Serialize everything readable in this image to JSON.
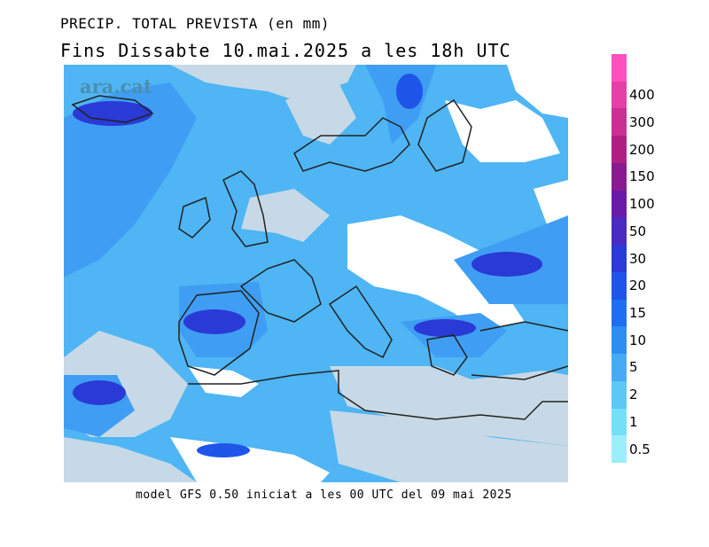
{
  "title_line1": "PRECIP. TOTAL PREVISTA (en mm)",
  "title_line2": "Fins Dissabte  10.mai.2025 a les 18h UTC",
  "footer": "model GFS 0.50 iniciat a les 00 UTC del 09 mai 2025",
  "logo_text": "ara.cat",
  "legend": {
    "unit": "mm",
    "levels": [
      {
        "label": "",
        "color": "#ff4fbf"
      },
      {
        "label": "400",
        "color": "#e63fa8"
      },
      {
        "label": "300",
        "color": "#cc2f94"
      },
      {
        "label": "200",
        "color": "#b01f84"
      },
      {
        "label": "150",
        "color": "#8a1a8f"
      },
      {
        "label": "100",
        "color": "#6a1aa8"
      },
      {
        "label": "50",
        "color": "#4a2ac0"
      },
      {
        "label": "30",
        "color": "#2a3ad6"
      },
      {
        "label": "20",
        "color": "#1f55e8"
      },
      {
        "label": "15",
        "color": "#1e6ff0"
      },
      {
        "label": "10",
        "color": "#2f8cf2"
      },
      {
        "label": "5",
        "color": "#48aaf4"
      },
      {
        "label": "2",
        "color": "#5cc8f6"
      },
      {
        "label": "1",
        "color": "#74e0f8"
      },
      {
        "label": "0.5",
        "color": "#9aeffa"
      }
    ]
  },
  "map_colors": {
    "no_precip_land": "#ffffff",
    "dry_sea": "#c7d9e6",
    "light": "#5cc8f6",
    "moderate": "#2f8cf2",
    "heavy": "#1f55e8",
    "very_heavy": "#2a3ad6",
    "coast": "#222222"
  }
}
